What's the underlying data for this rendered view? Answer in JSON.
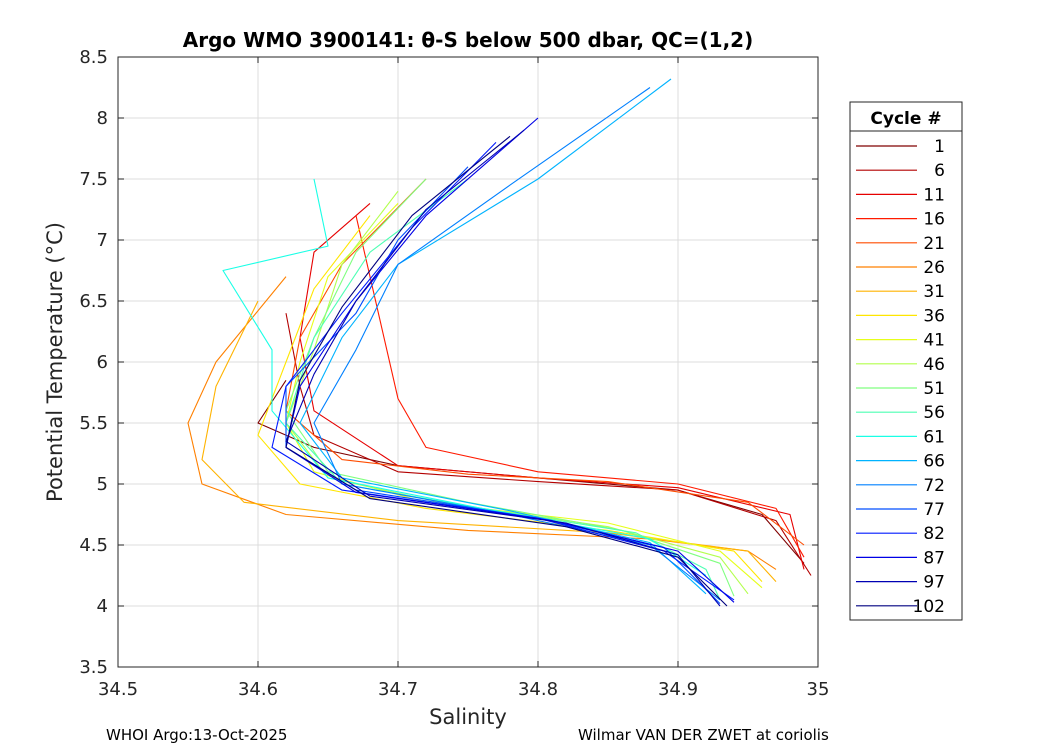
{
  "chart_data": {
    "type": "line",
    "title": "Argo WMO 3900141: θ-S below 500 dbar,  QC=(1,2)",
    "xlabel": "Salinity",
    "ylabel": "Potential Temperature (°C)",
    "xlim": [
      34.5,
      35
    ],
    "ylim": [
      3.5,
      8.5
    ],
    "xticks": [
      "34.5",
      "34.6",
      "34.7",
      "34.8",
      "34.9",
      "35"
    ],
    "yticks": [
      "3.5",
      "4",
      "4.5",
      "5",
      "5.5",
      "6",
      "6.5",
      "7",
      "7.5",
      "8",
      "8.5"
    ],
    "grid": true,
    "legend": {
      "title": "Cycle #",
      "placement": "right-outside",
      "entries": [
        "1",
        "6",
        "11",
        "16",
        "21",
        "26",
        "31",
        "36",
        "41",
        "46",
        "51",
        "56",
        "61",
        "66",
        "72",
        "77",
        "82",
        "87",
        "97",
        "102"
      ]
    },
    "series": [
      {
        "name": "1",
        "color": "#800000",
        "points": [
          [
            34.62,
            5.85
          ],
          [
            34.6,
            5.5
          ],
          [
            34.64,
            5.3
          ],
          [
            34.7,
            5.15
          ],
          [
            34.8,
            5.05
          ],
          [
            34.9,
            4.95
          ],
          [
            34.96,
            4.75
          ],
          [
            34.99,
            4.35
          ]
        ]
      },
      {
        "name": "6",
        "color": "#b30000",
        "points": [
          [
            34.62,
            6.4
          ],
          [
            34.63,
            5.8
          ],
          [
            34.64,
            5.4
          ],
          [
            34.7,
            5.1
          ],
          [
            34.8,
            5.02
          ],
          [
            34.9,
            4.95
          ],
          [
            34.97,
            4.7
          ],
          [
            34.995,
            4.25
          ]
        ]
      },
      {
        "name": "11",
        "color": "#e60000",
        "points": [
          [
            34.68,
            7.3
          ],
          [
            34.64,
            6.9
          ],
          [
            34.63,
            6.2
          ],
          [
            34.64,
            5.6
          ],
          [
            34.7,
            5.15
          ],
          [
            34.8,
            5.05
          ],
          [
            34.9,
            4.97
          ],
          [
            34.98,
            4.75
          ],
          [
            34.99,
            4.3
          ]
        ]
      },
      {
        "name": "16",
        "color": "#ff1a00",
        "points": [
          [
            34.67,
            7.2
          ],
          [
            34.69,
            6.2
          ],
          [
            34.7,
            5.7
          ],
          [
            34.72,
            5.3
          ],
          [
            34.8,
            5.1
          ],
          [
            34.9,
            5.0
          ],
          [
            34.97,
            4.8
          ],
          [
            34.99,
            4.4
          ]
        ]
      },
      {
        "name": "21",
        "color": "#ff4d00",
        "points": [
          [
            34.72,
            7.5
          ],
          [
            34.66,
            6.8
          ],
          [
            34.63,
            6.2
          ],
          [
            34.62,
            5.6
          ],
          [
            34.66,
            5.2
          ],
          [
            34.75,
            5.08
          ],
          [
            34.85,
            5.02
          ],
          [
            34.95,
            4.85
          ],
          [
            34.99,
            4.5
          ]
        ]
      },
      {
        "name": "26",
        "color": "#ff8000",
        "points": [
          [
            34.62,
            6.7
          ],
          [
            34.57,
            6.0
          ],
          [
            34.55,
            5.5
          ],
          [
            34.56,
            5.0
          ],
          [
            34.62,
            4.75
          ],
          [
            34.75,
            4.62
          ],
          [
            34.88,
            4.55
          ],
          [
            34.95,
            4.45
          ],
          [
            34.97,
            4.3
          ]
        ]
      },
      {
        "name": "31",
        "color": "#ffb300",
        "points": [
          [
            34.6,
            6.5
          ],
          [
            34.57,
            5.8
          ],
          [
            34.56,
            5.2
          ],
          [
            34.59,
            4.85
          ],
          [
            34.7,
            4.7
          ],
          [
            34.85,
            4.6
          ],
          [
            34.95,
            4.45
          ],
          [
            34.97,
            4.2
          ]
        ]
      },
      {
        "name": "36",
        "color": "#ffe600",
        "points": [
          [
            34.68,
            7.2
          ],
          [
            34.64,
            6.6
          ],
          [
            34.62,
            6.0
          ],
          [
            34.6,
            5.4
          ],
          [
            34.63,
            5.0
          ],
          [
            34.72,
            4.8
          ],
          [
            34.85,
            4.62
          ],
          [
            34.94,
            4.45
          ],
          [
            34.96,
            4.2
          ]
        ]
      },
      {
        "name": "41",
        "color": "#e6ff1a",
        "points": [
          [
            34.7,
            7.3
          ],
          [
            34.65,
            6.7
          ],
          [
            34.63,
            6.0
          ],
          [
            34.62,
            5.5
          ],
          [
            34.64,
            5.1
          ],
          [
            34.72,
            4.85
          ],
          [
            34.85,
            4.68
          ],
          [
            34.93,
            4.45
          ],
          [
            34.96,
            4.15
          ]
        ]
      },
      {
        "name": "46",
        "color": "#b3ff4d",
        "points": [
          [
            34.7,
            7.4
          ],
          [
            34.66,
            6.8
          ],
          [
            34.64,
            6.1
          ],
          [
            34.62,
            5.5
          ],
          [
            34.65,
            5.05
          ],
          [
            34.73,
            4.85
          ],
          [
            34.85,
            4.65
          ],
          [
            34.93,
            4.4
          ],
          [
            34.95,
            4.1
          ]
        ]
      },
      {
        "name": "51",
        "color": "#80ff80",
        "points": [
          [
            34.72,
            7.5
          ],
          [
            34.67,
            6.9
          ],
          [
            34.64,
            6.2
          ],
          [
            34.62,
            5.6
          ],
          [
            34.65,
            5.1
          ],
          [
            34.75,
            4.85
          ],
          [
            34.86,
            4.62
          ],
          [
            34.93,
            4.35
          ],
          [
            34.94,
            4.08
          ]
        ]
      },
      {
        "name": "56",
        "color": "#4dffb3",
        "points": [
          [
            34.75,
            7.5
          ],
          [
            34.68,
            6.9
          ],
          [
            34.64,
            6.2
          ],
          [
            34.62,
            5.5
          ],
          [
            34.66,
            5.0
          ],
          [
            34.76,
            4.8
          ],
          [
            34.87,
            4.6
          ],
          [
            34.92,
            4.3
          ],
          [
            34.93,
            4.05
          ]
        ]
      },
      {
        "name": "61",
        "color": "#1affe6",
        "points": [
          [
            34.64,
            7.5
          ],
          [
            34.65,
            6.95
          ],
          [
            34.575,
            6.75
          ],
          [
            34.61,
            6.1
          ],
          [
            34.61,
            5.6
          ],
          [
            34.65,
            5.05
          ],
          [
            34.76,
            4.8
          ],
          [
            34.88,
            4.55
          ],
          [
            34.92,
            4.25
          ]
        ]
      },
      {
        "name": "66",
        "color": "#00b3ff",
        "points": [
          [
            34.895,
            8.32
          ],
          [
            34.8,
            7.5
          ],
          [
            34.7,
            6.8
          ],
          [
            34.66,
            6.2
          ],
          [
            34.63,
            5.5
          ],
          [
            34.66,
            5.05
          ],
          [
            34.78,
            4.78
          ],
          [
            34.88,
            4.52
          ],
          [
            34.92,
            4.1
          ]
        ]
      },
      {
        "name": "72",
        "color": "#0080ff",
        "points": [
          [
            34.88,
            8.25
          ],
          [
            34.78,
            7.45
          ],
          [
            34.7,
            6.8
          ],
          [
            34.67,
            6.1
          ],
          [
            34.64,
            5.5
          ],
          [
            34.66,
            5.0
          ],
          [
            34.78,
            4.75
          ],
          [
            34.88,
            4.5
          ],
          [
            34.93,
            4.05
          ]
        ]
      },
      {
        "name": "77",
        "color": "#004dff",
        "points": [
          [
            34.75,
            7.6
          ],
          [
            34.7,
            7.0
          ],
          [
            34.67,
            6.4
          ],
          [
            34.62,
            5.8
          ],
          [
            34.62,
            5.3
          ],
          [
            34.67,
            4.95
          ],
          [
            34.8,
            4.72
          ],
          [
            34.89,
            4.48
          ],
          [
            34.93,
            4.02
          ]
        ]
      },
      {
        "name": "82",
        "color": "#001aff",
        "points": [
          [
            34.77,
            7.8
          ],
          [
            34.71,
            7.1
          ],
          [
            34.66,
            6.4
          ],
          [
            34.62,
            5.8
          ],
          [
            34.61,
            5.3
          ],
          [
            34.66,
            4.95
          ],
          [
            34.8,
            4.72
          ],
          [
            34.89,
            4.45
          ],
          [
            34.94,
            4.05
          ]
        ]
      },
      {
        "name": "87",
        "color": "#0000e6",
        "points": [
          [
            34.8,
            8.0
          ],
          [
            34.72,
            7.2
          ],
          [
            34.67,
            6.5
          ],
          [
            34.63,
            5.8
          ],
          [
            34.62,
            5.3
          ],
          [
            34.67,
            4.93
          ],
          [
            34.81,
            4.7
          ],
          [
            34.9,
            4.45
          ],
          [
            34.94,
            4.03
          ]
        ]
      },
      {
        "name": "97",
        "color": "#0000b3",
        "points": [
          [
            34.79,
            7.9
          ],
          [
            34.72,
            7.25
          ],
          [
            34.67,
            6.5
          ],
          [
            34.64,
            5.9
          ],
          [
            34.62,
            5.35
          ],
          [
            34.68,
            4.9
          ],
          [
            34.82,
            4.68
          ],
          [
            34.9,
            4.42
          ],
          [
            34.93,
            4.0
          ]
        ]
      },
      {
        "name": "102",
        "color": "#000080",
        "points": [
          [
            34.78,
            7.85
          ],
          [
            34.71,
            7.2
          ],
          [
            34.66,
            6.45
          ],
          [
            34.63,
            5.85
          ],
          [
            34.62,
            5.3
          ],
          [
            34.68,
            4.88
          ],
          [
            34.82,
            4.65
          ],
          [
            34.9,
            4.4
          ],
          [
            34.935,
            4.0
          ]
        ]
      }
    ]
  },
  "footer": {
    "left": "WHOI Argo:13-Oct-2025",
    "right": "Wilmar VAN DER ZWET at coriolis"
  }
}
